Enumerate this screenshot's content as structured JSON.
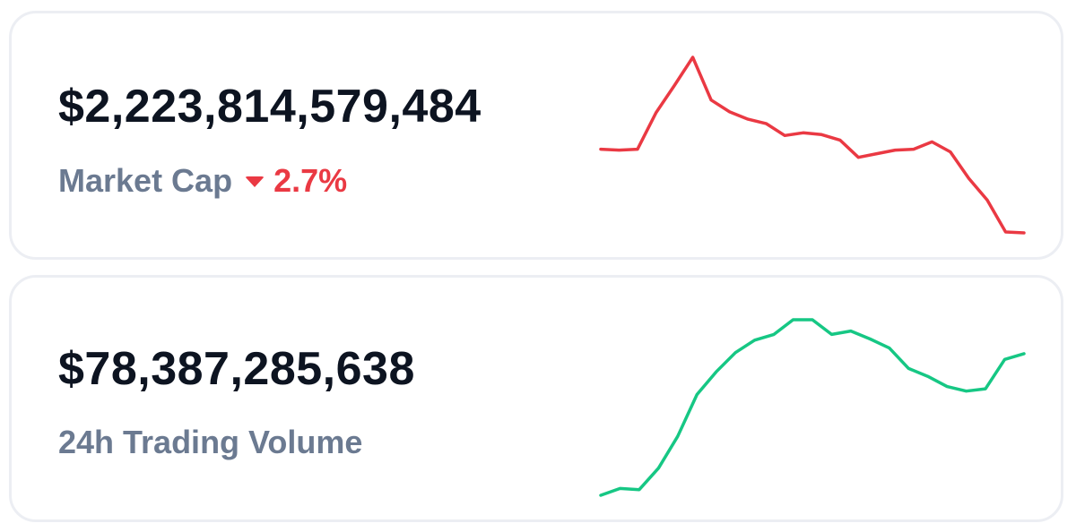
{
  "market_cap": {
    "value": "$2,223,814,579,484",
    "label": "Market Cap",
    "change": "2.7%",
    "change_direction": "down",
    "change_icon": "caret-down-icon",
    "line_color": "#ea3943"
  },
  "trading_volume": {
    "value": "$78,387,285,638",
    "label": "24h Trading Volume",
    "line_color": "#16c784"
  },
  "chart_data": [
    {
      "type": "line",
      "name": "market-cap-sparkline",
      "values": [
        17,
        16,
        17,
        57,
        87,
        118,
        71,
        58,
        50,
        45,
        32,
        35,
        33,
        27,
        8,
        12,
        16,
        17,
        25,
        14,
        -15,
        -39,
        -74,
        -75
      ]
    },
    {
      "type": "line",
      "name": "trading-volume-sparkline",
      "values": [
        -88,
        -82,
        -83,
        -64,
        -36,
        1,
        21,
        38,
        49,
        54,
        67,
        67,
        54,
        57,
        50,
        42,
        24,
        17,
        8,
        4,
        6,
        32,
        37
      ]
    }
  ]
}
